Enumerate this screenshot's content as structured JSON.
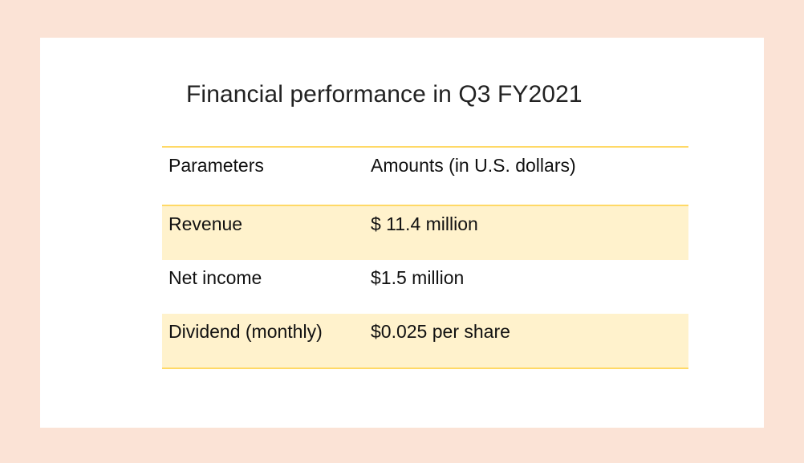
{
  "slide": {
    "title": "Financial performance in Q3 FY2021"
  },
  "table": {
    "headers": [
      "Parameters",
      "Amounts (in U.S. dollars)"
    ],
    "rows": [
      [
        "Revenue",
        "$ 11.4 million"
      ],
      [
        "Net income",
        "$1.5 million"
      ],
      [
        "Dividend (monthly)",
        "$0.025 per share"
      ]
    ]
  },
  "colors": {
    "page_background": "#fbe3d6",
    "slide_background": "#ffffff",
    "table_rule": "#ffd966",
    "row_shade": "#fff2cc"
  }
}
